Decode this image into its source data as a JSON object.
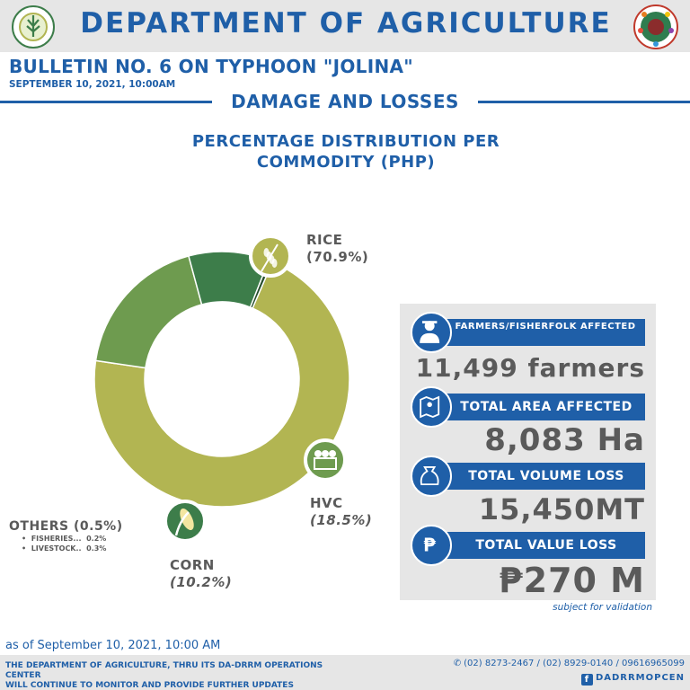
{
  "header": {
    "title": "DEPARTMENT OF AGRICULTURE",
    "logo_left": "da-seal-logo",
    "logo_right": "da-drrm-logo"
  },
  "bulletin": {
    "title": "BULLETIN NO. 6 ON TYPHOON \"JOLINA\"",
    "date": "SEPTEMBER 10, 2021, 10:00AM"
  },
  "section_title": "DAMAGE AND LOSSES",
  "chart_data": {
    "type": "pie",
    "title": "PERCENTAGE DISTRIBUTION PER COMMODITY (PHP)",
    "slices": [
      {
        "label": "RICE",
        "value": 70.9,
        "value_label": "(70.9%)",
        "color": "#b2b552",
        "icon": "rice-icon"
      },
      {
        "label": "HVC",
        "value": 18.5,
        "value_label": "(18.5%)",
        "color": "#6e9b4f",
        "icon": "vegetable-crate-icon"
      },
      {
        "label": "CORN",
        "value": 10.2,
        "value_label": "(10.2%)",
        "color": "#3d7d4a",
        "icon": "corn-icon"
      },
      {
        "label": "OTHERS",
        "value": 0.5,
        "value_label": "(0.5%)",
        "color": "#274e2d",
        "icon": ""
      }
    ],
    "others_breakdown": [
      {
        "label": "FISHERIES...",
        "value": "0.2%"
      },
      {
        "label": "LIVESTOCK..",
        "value": "0.3%"
      }
    ]
  },
  "summary": {
    "farmers_label": "FARMERS/FISHERFOLK AFFECTED",
    "farmers_value": "11,499 farmers",
    "area_label": "TOTAL AREA AFFECTED",
    "area_value": "8,083 Ha",
    "volume_label": "TOTAL VOLUME LOSS",
    "volume_value": "15,450MT",
    "value_label": "TOTAL VALUE LOSS",
    "value_value": "₱270 M",
    "validation_note": "subject for validation"
  },
  "footer": {
    "as_of": "as of September 10, 2021, 10:00 AM",
    "note_line1": "THE DEPARTMENT OF AGRICULTURE, THRU ITS DA-DRRM OPERATIONS CENTER",
    "note_line2": "WILL CONTINUE TO MONITOR AND PROVIDE FURTHER UPDATES",
    "phones": "(02) 8273-2467 / (02) 8929-0140 / 09616965099",
    "facebook": "DADRRMOPCEN"
  },
  "colors": {
    "brand_blue": "#1f5fa8",
    "panel_gray": "#e6e6e6",
    "text_gray": "#5a5a5a"
  }
}
